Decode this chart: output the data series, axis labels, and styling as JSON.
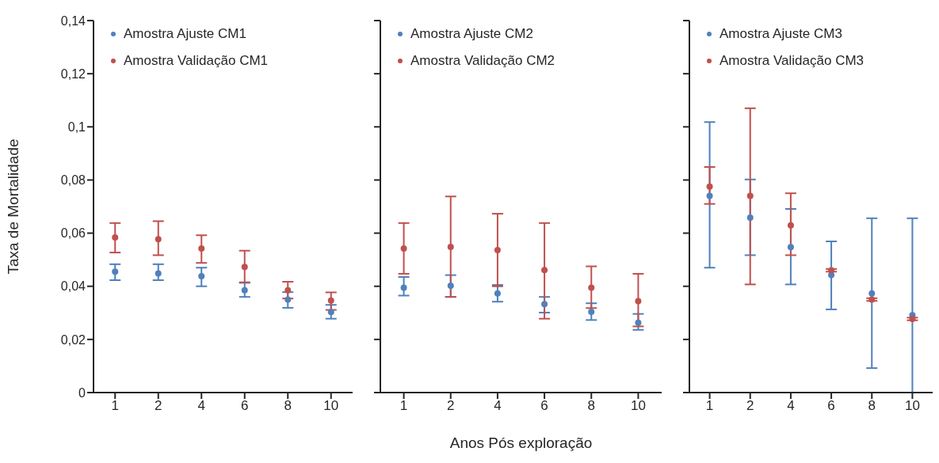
{
  "chart_data": [
    {
      "type": "scatter",
      "categories": [
        "1",
        "2",
        "4",
        "6",
        "8",
        "10"
      ],
      "ylabel": "Taxa de Mortalidade",
      "ylim": [
        0,
        0.14
      ],
      "yticks": [
        {
          "value": 0,
          "label": "0"
        },
        {
          "value": 0.02,
          "label": "0,02"
        },
        {
          "value": 0.04,
          "label": "0,04"
        },
        {
          "value": 0.06,
          "label": "0,06"
        },
        {
          "value": 0.08,
          "label": "0,08"
        },
        {
          "value": 0.1,
          "label": "0,1"
        },
        {
          "value": 0.12,
          "label": "0,12"
        },
        {
          "value": 0.14,
          "label": "0,14"
        }
      ],
      "legend": "top left",
      "marker": "circle",
      "grid": false,
      "series": [
        {
          "name": "Amostra Ajuste CM1",
          "color": "#4f81bd",
          "values": [
            0.0455,
            0.0448,
            0.0438,
            0.0385,
            0.035,
            0.0303
          ],
          "errors": [
            [
              0.0423,
              0.0483
            ],
            [
              0.0423,
              0.0483
            ],
            [
              0.04,
              0.047
            ],
            [
              0.036,
              0.0413
            ],
            [
              0.0319,
              0.0378
            ],
            [
              0.0278,
              0.033
            ]
          ]
        },
        {
          "name": "Amostra Validação CM1",
          "color": "#c0504d",
          "values": [
            0.0584,
            0.0577,
            0.0542,
            0.0473,
            0.0385,
            0.0346
          ],
          "errors": [
            [
              0.0527,
              0.0638
            ],
            [
              0.0517,
              0.0645
            ],
            [
              0.0488,
              0.0592
            ],
            [
              0.0415,
              0.0534
            ],
            [
              0.0354,
              0.0417
            ],
            [
              0.0311,
              0.0377
            ]
          ]
        }
      ]
    },
    {
      "type": "scatter",
      "categories": [
        "1",
        "2",
        "4",
        "6",
        "8",
        "10"
      ],
      "xlabel": "Anos Pós exploração",
      "ylim": [
        0,
        0.14
      ],
      "yticks": [
        {
          "value": 0,
          "label": null
        },
        {
          "value": 0.02,
          "label": null
        },
        {
          "value": 0.04,
          "label": null
        },
        {
          "value": 0.06,
          "label": null
        },
        {
          "value": 0.08,
          "label": null
        },
        {
          "value": 0.1,
          "label": null
        },
        {
          "value": 0.12,
          "label": null
        },
        {
          "value": 0.14,
          "label": null
        }
      ],
      "tick_labels": "x",
      "legend": "top left",
      "marker": "circle",
      "grid": false,
      "series": [
        {
          "name": "Amostra Ajuste CM2",
          "color": "#4f81bd",
          "values": [
            0.0395,
            0.0402,
            0.0373,
            0.0333,
            0.0304,
            0.0263
          ],
          "errors": [
            [
              0.0365,
              0.0435
            ],
            [
              0.036,
              0.0442
            ],
            [
              0.0342,
              0.0405
            ],
            [
              0.0301,
              0.036
            ],
            [
              0.0273,
              0.0336
            ],
            [
              0.0236,
              0.0296
            ]
          ]
        },
        {
          "name": "Amostra Validação CM2",
          "color": "#c0504d",
          "values": [
            0.0542,
            0.0548,
            0.0536,
            0.0461,
            0.0395,
            0.0344
          ],
          "errors": [
            [
              0.0447,
              0.0638
            ],
            [
              0.036,
              0.0738
            ],
            [
              0.04,
              0.0673
            ],
            [
              0.0278,
              0.0638
            ],
            [
              0.0318,
              0.0475
            ],
            [
              0.0249,
              0.0447
            ]
          ]
        }
      ]
    },
    {
      "type": "scatter",
      "categories": [
        "1",
        "2",
        "4",
        "6",
        "8",
        "10"
      ],
      "ylim": [
        0,
        0.14
      ],
      "yticks": [
        {
          "value": 0,
          "label": null
        },
        {
          "value": 0.02,
          "label": null
        },
        {
          "value": 0.04,
          "label": null
        },
        {
          "value": 0.06,
          "label": null
        },
        {
          "value": 0.08,
          "label": null
        },
        {
          "value": 0.1,
          "label": null
        },
        {
          "value": 0.12,
          "label": null
        },
        {
          "value": 0.14,
          "label": null
        }
      ],
      "tick_labels": "x",
      "legend": "top left",
      "marker": "circle",
      "grid": false,
      "series": [
        {
          "name": "Amostra Ajuste CM3",
          "color": "#4f81bd",
          "values": [
            0.074,
            0.0658,
            0.0547,
            0.0442,
            0.0373,
            0.0291
          ],
          "errors": [
            [
              0.047,
              0.1018
            ],
            [
              0.0517,
              0.0802
            ],
            [
              0.0407,
              0.0691
            ],
            [
              0.0313,
              0.0569
            ],
            [
              0.0092,
              0.0656
            ],
            [
              0,
              0.0656
            ]
          ]
        },
        {
          "name": "Amostra Validação CM3",
          "color": "#c0504d",
          "values": [
            0.0775,
            0.074,
            0.0629,
            0.046,
            0.035,
            0.0277
          ],
          "errors": [
            [
              0.071,
              0.0849
            ],
            [
              0.0407,
              0.107
            ],
            [
              0.0517,
              0.075
            ],
            [
              0.0455,
              0.0465
            ],
            [
              0.0345,
              0.0355
            ],
            [
              0.0272,
              0.0282
            ]
          ]
        }
      ]
    }
  ]
}
